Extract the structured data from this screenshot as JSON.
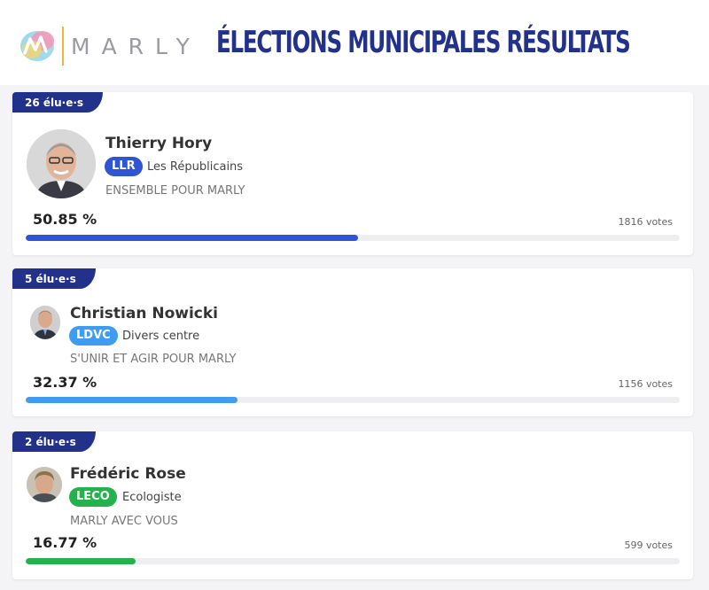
{
  "header": {
    "brand": "MARLY",
    "title": "ÉLECTIONS MUNICIPALES RÉSULTATS"
  },
  "results": [
    {
      "seats": "26 élu·e·s",
      "name": "Thierry Hory",
      "badge": "LLR",
      "party": "Les Républicains",
      "list": "ENSEMBLE POUR MARLY",
      "percent": "50.85 %",
      "share": 50.85,
      "votes": "1816 votes",
      "color": "#2f55d4"
    },
    {
      "seats": "5 élu·e·s",
      "name": "Christian Nowicki",
      "badge": "LDVC",
      "party": "Divers centre",
      "list": "S'UNIR ET AGIR POUR MARLY",
      "percent": "32.37 %",
      "share": 32.37,
      "votes": "1156 votes",
      "color": "#3f9cf0"
    },
    {
      "seats": "2 élu·e·s",
      "name": "Frédéric Rose",
      "badge": "LECO",
      "party": "Ecologiste",
      "list": "MARLY AVEC VOUS",
      "percent": "16.77 %",
      "share": 16.77,
      "votes": "599 votes",
      "color": "#23b24b"
    }
  ]
}
